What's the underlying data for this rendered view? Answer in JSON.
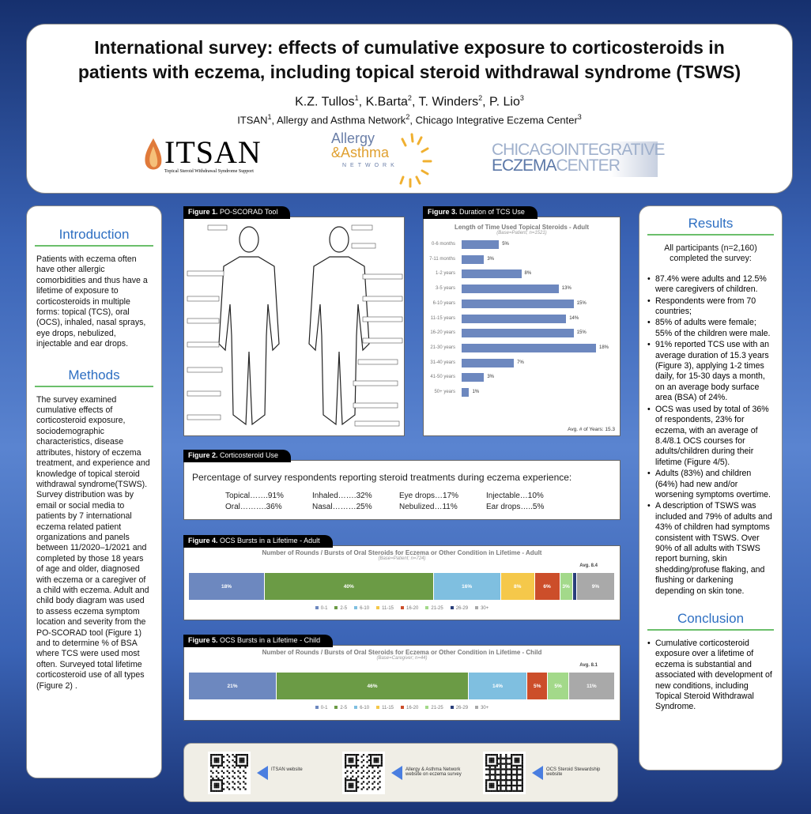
{
  "header": {
    "title_line1": "International survey: effects of cumulative exposure to corticosteroids in",
    "title_line2": "patients with eczema, including topical steroid withdrawal syndrome (TSWS)",
    "authors": [
      {
        "name": "K.Z. Tullos",
        "sup": "1"
      },
      {
        "name": "K.Barta",
        "sup": "2"
      },
      {
        "name": "T. Winders",
        "sup": "2"
      },
      {
        "name": "P. Lio",
        "sup": "3"
      }
    ],
    "affiliations": [
      {
        "name": "ITSAN",
        "sup": "1"
      },
      {
        "name": "Allergy and Asthma Network",
        "sup": "2"
      },
      {
        "name": "Chicago Integrative Eczema Center",
        "sup": "3"
      }
    ],
    "logos": {
      "itsan": "ITSAN",
      "itsan_sub": "Topical Steroid Withdrawal Syndrome Support",
      "aan1": "Allergy",
      "aan2": "&Asthma",
      "aan3": "NETWORK",
      "cie1a": "CHICAGO",
      "cie1b": "INTEGRATIVE",
      "cie2a": "ECZEMA",
      "cie2b": "CENTER"
    }
  },
  "introduction": {
    "heading": "Introduction",
    "text": "Patients with eczema often have other allergic comorbidities and thus have a lifetime of exposure to corticosteroids in multiple forms: topical (TCS), oral (OCS), inhaled, nasal sprays, eye drops, nebulized, injectable and ear drops."
  },
  "methods": {
    "heading": "Methods",
    "text": "The survey examined cumulative effects of corticosteroid exposure, sociodemographic characteristics, disease attributes, history of eczema treatment, and experience and knowledge of topical steroid withdrawal syndrome(TSWS). Survey distribution was by email or social media to patients by 7 international eczema related patient organizations and panels between 11/2020–1/2021 and completed by those 18 years of age and older,  diagnosed with eczema or a caregiver of a child with eczema. Adult and child body diagram was used to assess eczema symptom location and severity from the PO-SCORAD tool (Figure 1) and to determine % of BSA where TCS were used most often. Surveyed total lifetime corticosteroid use of all types (Figure 2) ."
  },
  "results": {
    "heading": "Results",
    "intro": "All participants (n=2,160) completed the survey:",
    "bullets": [
      "87.4% were adults and 12.5% were caregivers of children.",
      "Respondents were from 70 countries;",
      "85% of adults were female; 55% of the children were male.",
      "91% reported TCS use with an average duration of 15.3 years (Figure 3), applying 1-2 times daily, for 15-30 days a month, on an average body surface area (BSA) of 24%.",
      "OCS was used by total of 36% of respondents, 23% for eczema, with an average of 8.4/8.1 OCS courses for adults/children during their lifetime (Figure 4/5).",
      "Adults (83%) and children (64%) had new and/or worsening symptoms overtime.",
      "A description of TSWS was included and 79% of adults and 43% of children had symptoms consistent with TSWS. Over 90% of all adults with TSWS report burning, skin shedding/profuse flaking, and flushing or darkening depending on skin tone."
    ]
  },
  "conclusion": {
    "heading": "Conclusion",
    "bullets": [
      "Cumulative corticosteroid exposure over a lifetime of eczema is substantial and associated with development of new conditions, including Topical Steroid Withdrawal Syndrome."
    ]
  },
  "figure1": {
    "label": "Figure 1.",
    "title": "PO-SCORAD Tool"
  },
  "figure2": {
    "label": "Figure 2.",
    "title": "Corticosteroid  Use",
    "intro": "Percentage of survey respondents reporting steroid treatments during eczema experience:",
    "items": [
      "Topical…….91%",
      "Inhaled…….32%",
      "Eye drops…17%",
      "Injectable…10%",
      "Oral……….36%",
      "Nasal………25%",
      "Nebulized…11%",
      "Ear drops…..5%"
    ]
  },
  "figure3": {
    "label": "Figure 3.",
    "title": "Duration of TCS Use"
  },
  "figure4": {
    "label": "Figure 4.",
    "title": "OCS Bursts in a Lifetime - Adult"
  },
  "figure5": {
    "label": "Figure 5.",
    "title": "OCS Bursts in a Lifetime - Child"
  },
  "qr_codes": [
    {
      "label": "ITSAN website"
    },
    {
      "label": "Allergy & Asthma Network website on eczema survey"
    },
    {
      "label": "OCS Steroid Stewardship website"
    }
  ],
  "chart_data": [
    {
      "type": "bar",
      "orientation": "horizontal",
      "title": "Length of Time Used Topical Steroids - Adult",
      "subtitle": "(Base=Patient; n=1521)",
      "categories": [
        "0-6 months",
        "7-11 months",
        "1-2 years",
        "3-5 years",
        "6-10 years",
        "11-15 years",
        "16-20 years",
        "21-30 years",
        "31-40 years",
        "41-50 years",
        "50+ years"
      ],
      "values": [
        5,
        3,
        8,
        13,
        15,
        14,
        15,
        18,
        7,
        3,
        1
      ],
      "unit": "%",
      "annotation": "Avg. # of Years: 15.3",
      "color": "#6d88bf"
    },
    {
      "type": "bar",
      "stacked": true,
      "title": "Number of Rounds / Bursts of Oral Steroids for Eczema or Other Condition in Lifetime - Adult",
      "subtitle": "(Base=Patient; n=724)",
      "annotation": "Avg. 8.4",
      "categories": [
        "0-1",
        "2-5",
        "6-10",
        "11-15",
        "16-20",
        "21-25",
        "26-29",
        "30+"
      ],
      "values": [
        18,
        40,
        16,
        8,
        6,
        3,
        1,
        9
      ],
      "labels": [
        "18%",
        "40%",
        "16%",
        "8%",
        "6%",
        "3%",
        "",
        "9%"
      ],
      "colors": [
        "#6d88bf",
        "#6b9b45",
        "#7fbfe0",
        "#f5c84a",
        "#cc4e2a",
        "#a3d98a",
        "#2a3f7a",
        "#a9a9a9"
      ],
      "legend": "bottom"
    },
    {
      "type": "bar",
      "stacked": true,
      "title": "Number of Rounds / Bursts of Oral Steroids for Eczema or Other Condition in Lifetime - Child",
      "subtitle": "(Base=Caregiver; n=44)",
      "annotation": "Avg. 8.1",
      "categories": [
        "0-1",
        "2-5",
        "6-10",
        "11-15",
        "16-20",
        "21-25",
        "26-29",
        "30+"
      ],
      "values": [
        21,
        46,
        14,
        0,
        5,
        5,
        0,
        11
      ],
      "labels": [
        "21%",
        "46%",
        "14%",
        "",
        "5%",
        "5%",
        "",
        "11%"
      ],
      "colors": [
        "#6d88bf",
        "#6b9b45",
        "#7fbfe0",
        "#f5c84a",
        "#cc4e2a",
        "#a3d98a",
        "#2a3f7a",
        "#a9a9a9"
      ],
      "legend": "bottom"
    }
  ]
}
